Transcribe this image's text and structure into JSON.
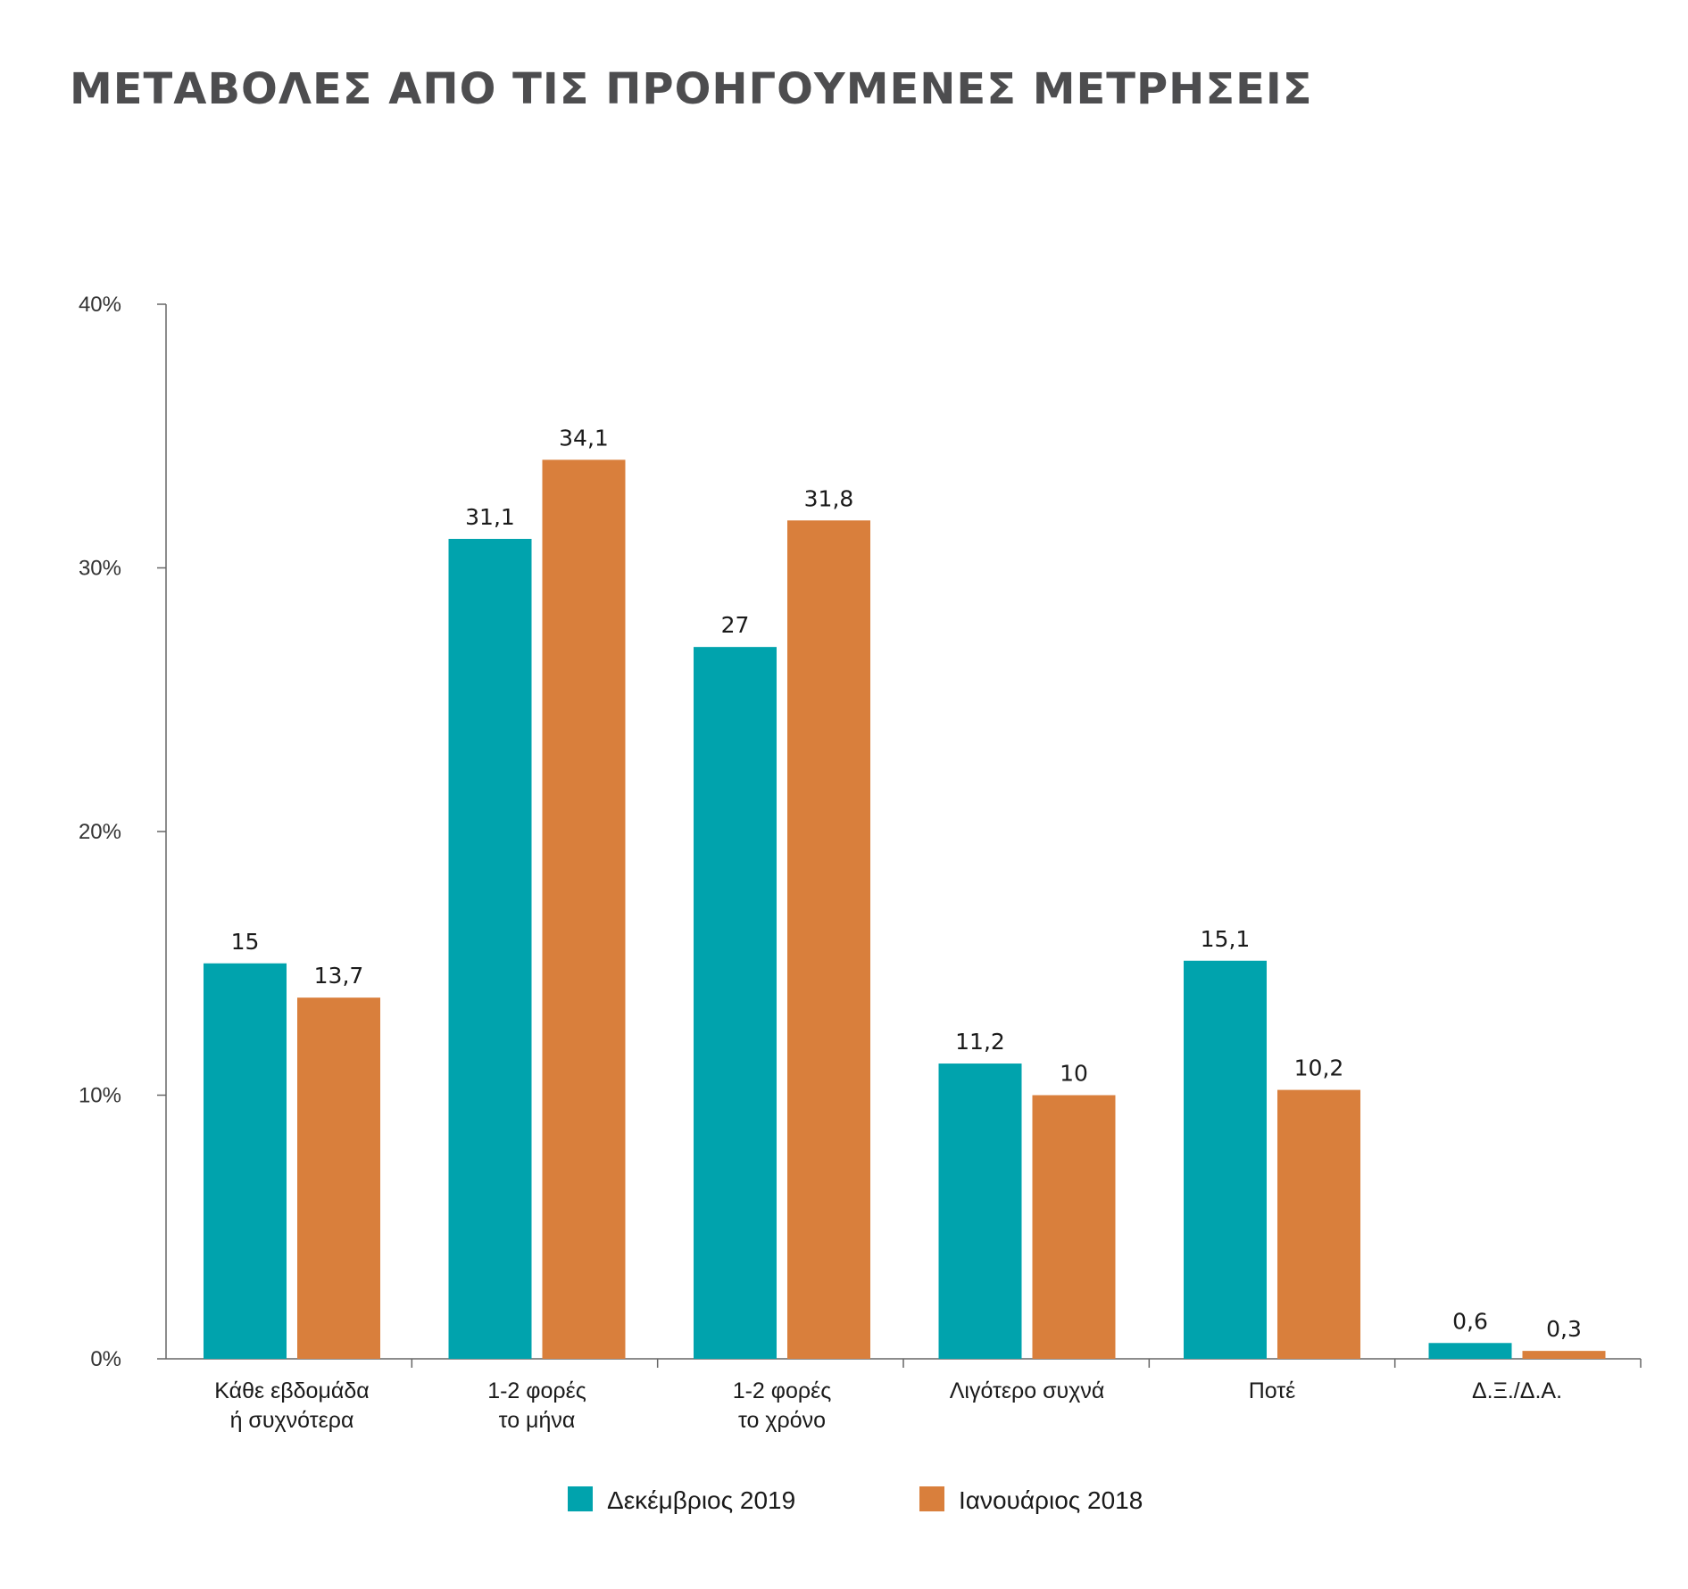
{
  "title": "ΜΕΤΑΒΟΛΕΣ ΑΠΟ ΤΙΣ ΠΡΟΗΓΟΥΜΕΝΕΣ ΜΕΤΡΗΣΕΙΣ",
  "chart_data": {
    "type": "bar",
    "title": "ΜΕΤΑΒΟΛΕΣ ΑΠΟ ΤΙΣ ΠΡΟΗΓΟΥΜΕΝΕΣ ΜΕΤΡΗΣΕΙΣ",
    "categories": [
      [
        "Κάθε εβδομάδα",
        "ή συχνότερα"
      ],
      [
        "1-2 φορές",
        "το μήνα"
      ],
      [
        "1-2 φορές",
        "το χρόνο"
      ],
      [
        "Λιγότερο συχνά"
      ],
      [
        "Ποτέ"
      ],
      [
        "Δ.Ξ./Δ.Α."
      ]
    ],
    "series": [
      {
        "name": "Δεκέμβριος 2019",
        "color": "#00a3ad",
        "values": [
          15,
          31.1,
          27,
          11.2,
          15.1,
          0.6
        ],
        "labels": [
          "15",
          "31,1",
          "27",
          "11,2",
          "15,1",
          "0,6"
        ]
      },
      {
        "name": "Ιανουάριος 2018",
        "color": "#d97f3c",
        "values": [
          13.7,
          34.1,
          31.8,
          10,
          10.2,
          0.3
        ],
        "labels": [
          "13,7",
          "34,1",
          "31,8",
          "10",
          "10,2",
          "0,3"
        ]
      }
    ],
    "yticks": [
      0,
      10,
      20,
      30,
      40
    ],
    "ytick_labels": [
      "0%",
      "10%",
      "20%",
      "30%",
      "40%"
    ],
    "ylim": [
      0,
      40
    ],
    "grid": false,
    "legend_position": "bottom-center",
    "xlabel": "",
    "ylabel": ""
  }
}
